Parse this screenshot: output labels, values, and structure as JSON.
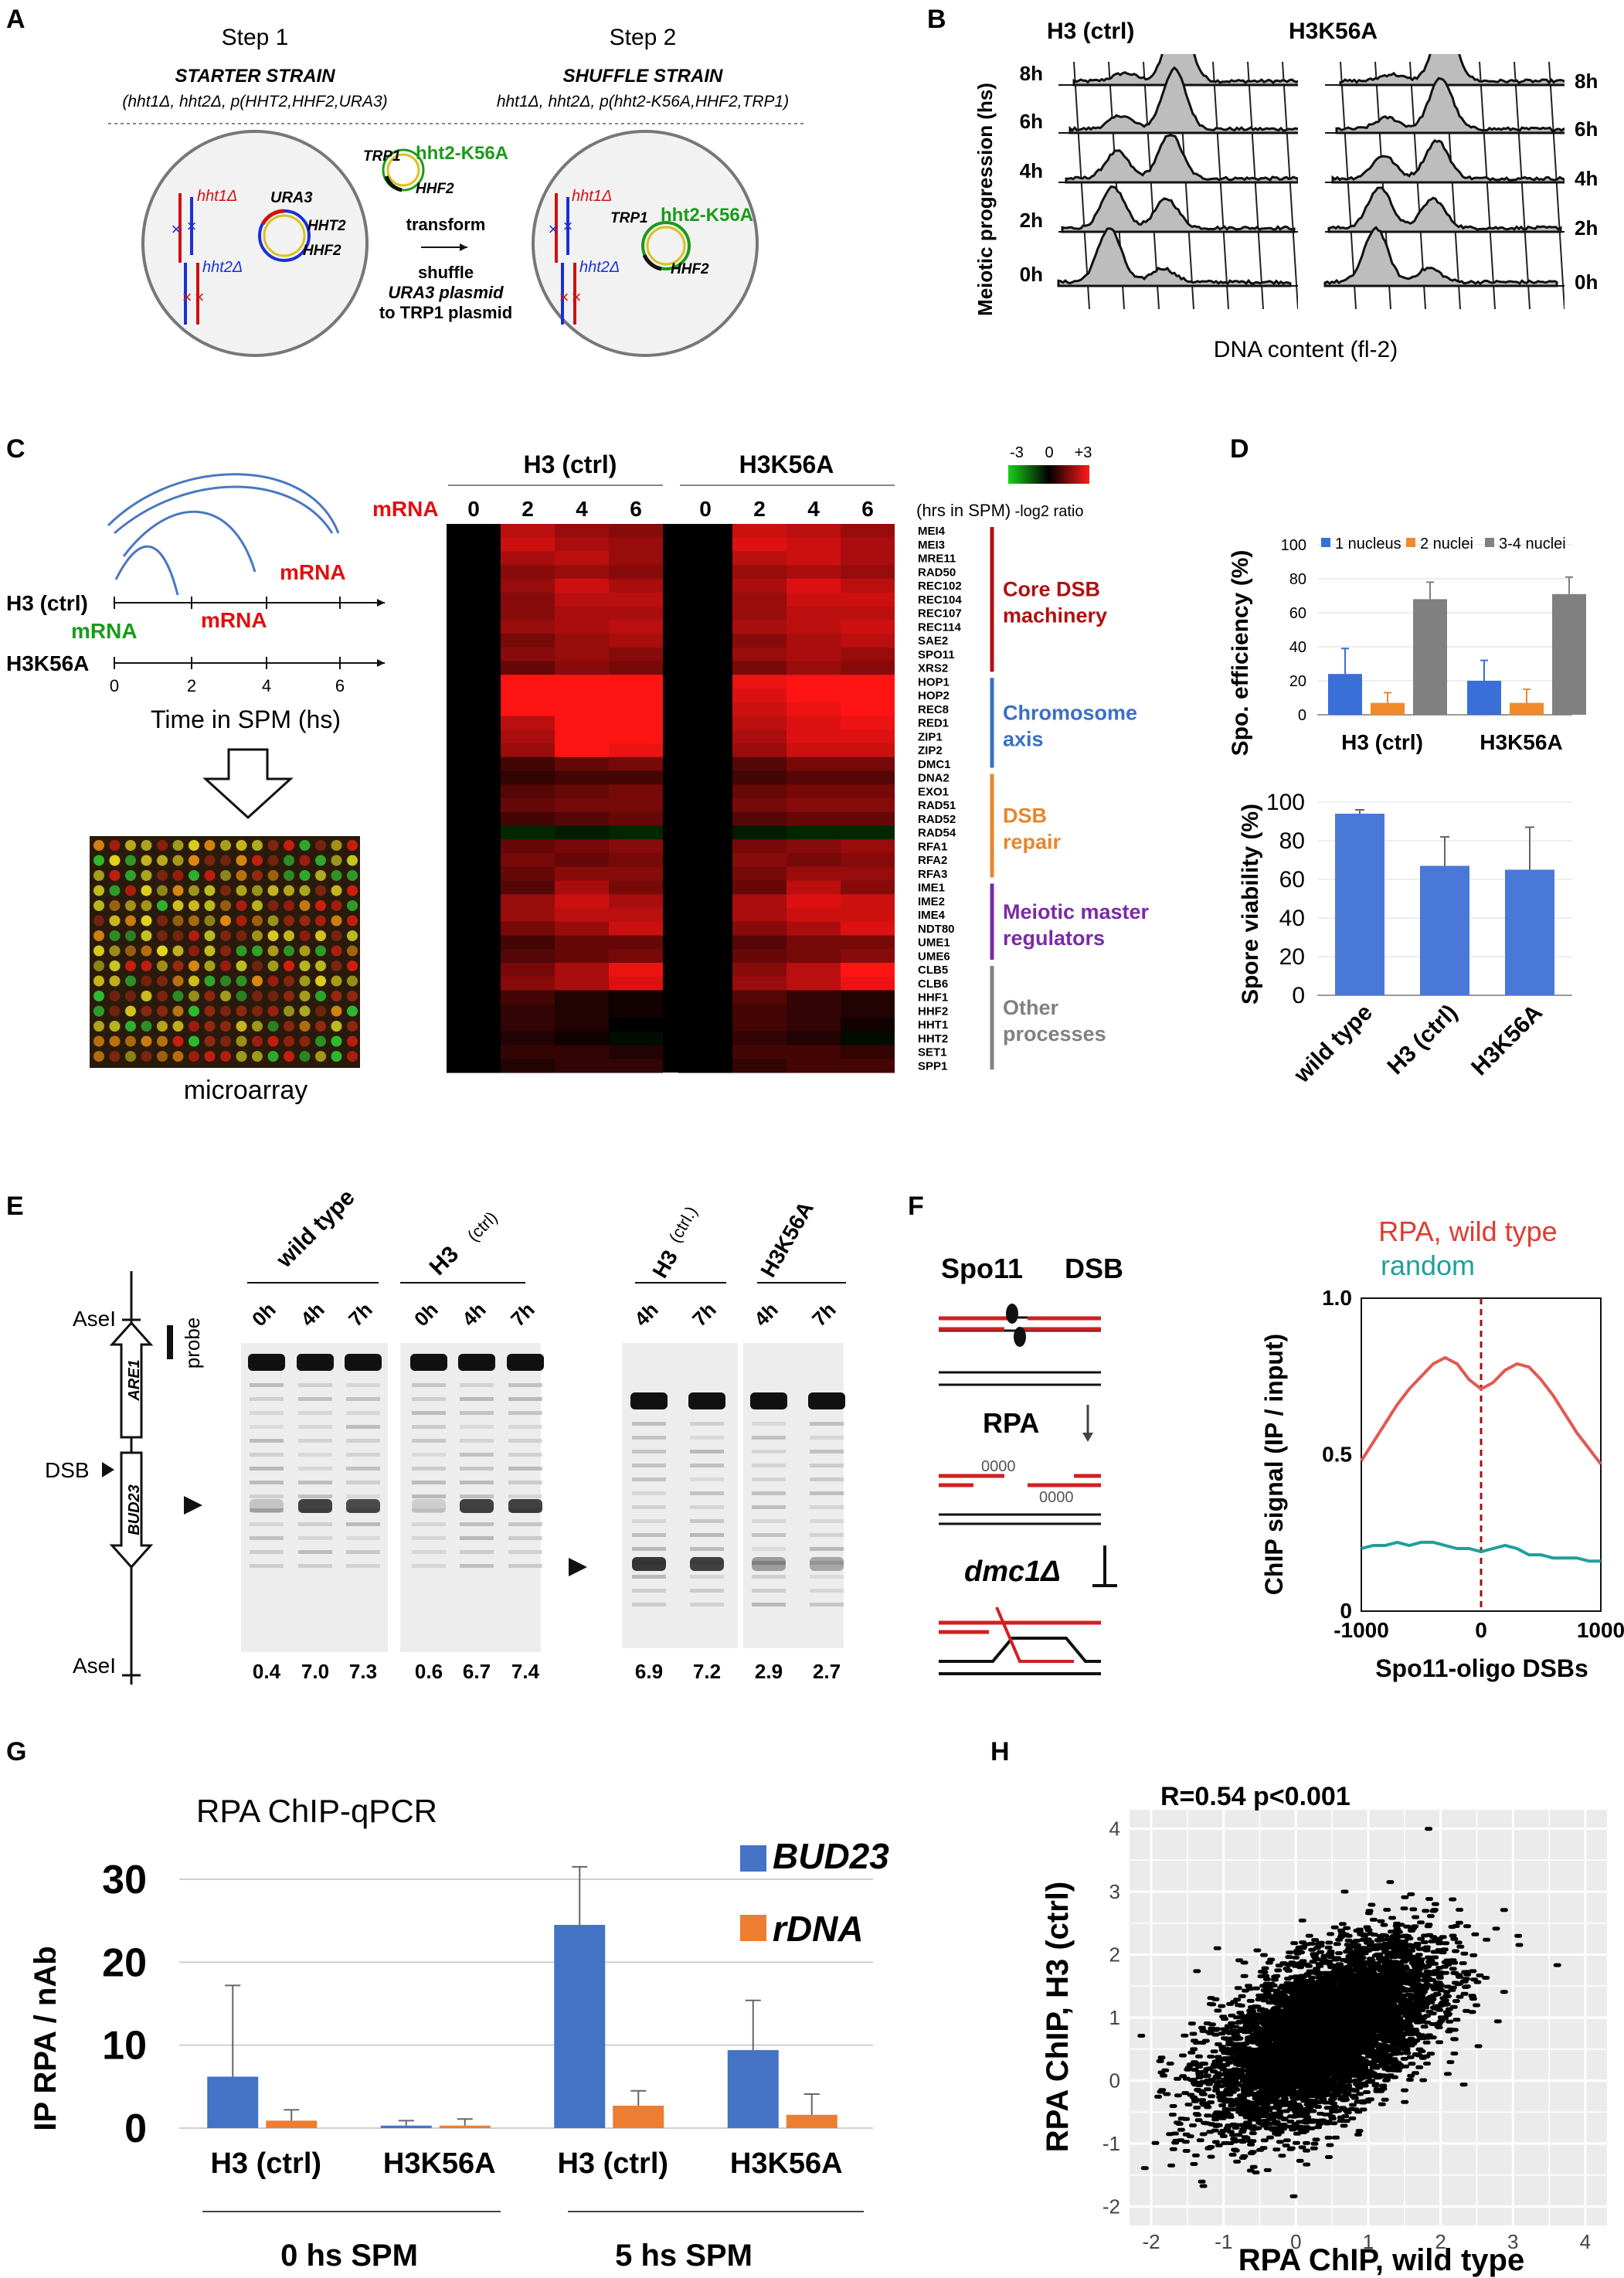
{
  "panels": {
    "A": {
      "label": "A",
      "step1": "Step 1",
      "step2": "Step 2",
      "starter_title": "STARTER STRAIN",
      "starter_genotype": "(hht1Δ, hht2Δ, p(HHT2,HHF2,URA3)",
      "shuffle_title": "SHUFFLE STRAIN",
      "shuffle_genotype": "hht1Δ, hht2Δ, p(hht2-K56A,HHF2,TRP1)",
      "hht1": "hht1Δ",
      "hht2": "hht2Δ",
      "ura3": "URA3",
      "HHT2": "HHT2",
      "HHF2": "HHF2",
      "TRP1": "TRP1",
      "k56a": "hht2-K56A",
      "transform": "transform",
      "shuffle": "shuffle",
      "ura3_plasmid": "URA3 plasmid",
      "to_trp1": "to TRP1 plasmid",
      "colors": {
        "red": "#d01010",
        "blue": "#1a2fd6",
        "green": "#1a9a1a",
        "yellow": "#d9c21a"
      }
    },
    "B": {
      "label": "B",
      "title_left": "H3 (ctrl)",
      "title_right": "H3K56A",
      "ylabel": "Meiotic progression (hs)",
      "xlabel": "DNA content (fl-2)",
      "timepoints": [
        "8h",
        "6h",
        "4h",
        "2h",
        "0h"
      ]
    },
    "C": {
      "label": "C",
      "strain1": "H3 (ctrl)",
      "strain2": "H3K56A",
      "mrna": "mRNA",
      "xlabel": "Time in SPM (hs)",
      "ticks": [
        "0",
        "2",
        "4",
        "6"
      ],
      "microarray": "microarray",
      "heat_cols": [
        "0",
        "2",
        "4",
        "6",
        "0",
        "2",
        "4",
        "6"
      ],
      "hrs_label": "(hrs in SPM)",
      "scale_min": "-3",
      "scale_mid": "0",
      "scale_max": "+3",
      "scale_label": "-log2 ratio",
      "genes": [
        "MEI4",
        "MEI3",
        "MRE11",
        "RAD50",
        "REC102",
        "REC104",
        "REC107",
        "REC114",
        "SAE2",
        "SPO11",
        "XRS2",
        "HOP1",
        "HOP2",
        "REC8",
        "RED1",
        "ZIP1",
        "ZIP2",
        "DMC1",
        "DNA2",
        "EXO1",
        "RAD51",
        "RAD52",
        "RAD54",
        "RFA1",
        "RFA2",
        "RFA3",
        "IME1",
        "IME2",
        "IME4",
        "NDT80",
        "UME1",
        "UME6",
        "CLB5",
        "CLB6",
        "HHF1",
        "HHF2",
        "HHT1",
        "HHT2",
        "SET1",
        "SPP1"
      ],
      "groups": [
        {
          "label": "Core DSB",
          "label2": "machinery",
          "color": "#b01010"
        },
        {
          "label": "Chromosome",
          "label2": "axis",
          "color": "#3a6fc4"
        },
        {
          "label": "DSB",
          "label2": "repair",
          "color": "#e8862a"
        },
        {
          "label": "Meiotic master",
          "label2": "regulators",
          "color": "#7a2aa8"
        },
        {
          "label": "Other",
          "label2": "processes",
          "color": "#808080"
        }
      ],
      "heatmap": {
        "ctrl": [
          [
            0,
            2.2,
            1.8,
            1.6
          ],
          [
            0,
            2.4,
            2.0,
            1.8
          ],
          [
            0,
            2.0,
            2.2,
            1.8
          ],
          [
            0,
            1.6,
            1.8,
            1.6
          ],
          [
            0,
            1.8,
            2.4,
            2.0
          ],
          [
            0,
            1.6,
            2.2,
            2.2
          ],
          [
            0,
            1.6,
            2.0,
            2.0
          ],
          [
            0,
            1.8,
            2.0,
            2.2
          ],
          [
            0,
            1.4,
            1.8,
            2.0
          ],
          [
            0,
            1.6,
            1.8,
            1.6
          ],
          [
            0,
            1.2,
            1.6,
            1.4
          ],
          [
            0,
            3.0,
            3.0,
            3.0
          ],
          [
            0,
            3.0,
            3.0,
            3.0
          ],
          [
            0,
            3.0,
            3.0,
            3.0
          ],
          [
            0,
            2.2,
            3.0,
            3.0
          ],
          [
            0,
            2.0,
            3.0,
            3.0
          ],
          [
            0,
            1.8,
            3.0,
            2.8
          ],
          [
            0,
            0.8,
            1.2,
            1.4
          ],
          [
            0,
            0.6,
            0.8,
            0.8
          ],
          [
            0,
            1.0,
            1.2,
            1.4
          ],
          [
            0,
            1.2,
            1.4,
            1.4
          ],
          [
            0,
            0.8,
            1.0,
            1.2
          ],
          [
            0,
            -0.6,
            -0.4,
            -0.6
          ],
          [
            0,
            1.2,
            1.4,
            1.6
          ],
          [
            0,
            1.4,
            1.2,
            1.4
          ],
          [
            0,
            1.2,
            1.6,
            1.6
          ],
          [
            0,
            1.0,
            2.0,
            1.4
          ],
          [
            0,
            1.8,
            2.4,
            2.0
          ],
          [
            0,
            1.8,
            2.2,
            2.2
          ],
          [
            0,
            1.4,
            1.8,
            2.4
          ],
          [
            0,
            0.8,
            1.2,
            1.2
          ],
          [
            0,
            1.0,
            1.2,
            1.4
          ],
          [
            0,
            1.4,
            2.0,
            2.8
          ],
          [
            0,
            1.6,
            2.0,
            2.6
          ],
          [
            0,
            0.8,
            0.4,
            0.2
          ],
          [
            0,
            0.6,
            0.4,
            0.2
          ],
          [
            0,
            0.6,
            0.4,
            0.0
          ],
          [
            0,
            0.4,
            0.2,
            -0.2
          ],
          [
            0,
            0.6,
            0.6,
            0.4
          ],
          [
            0,
            0.4,
            0.6,
            0.6
          ]
        ],
        "k56a": [
          [
            0,
            2.4,
            2.2,
            1.8
          ],
          [
            0,
            2.6,
            2.4,
            2.0
          ],
          [
            0,
            2.2,
            2.4,
            2.0
          ],
          [
            0,
            1.8,
            2.0,
            1.8
          ],
          [
            0,
            2.0,
            2.6,
            2.2
          ],
          [
            0,
            1.8,
            2.4,
            2.4
          ],
          [
            0,
            1.8,
            2.2,
            2.2
          ],
          [
            0,
            2.0,
            2.2,
            2.4
          ],
          [
            0,
            1.6,
            2.0,
            2.2
          ],
          [
            0,
            1.8,
            2.0,
            1.8
          ],
          [
            0,
            1.4,
            1.8,
            1.6
          ],
          [
            0,
            2.8,
            3.0,
            3.0
          ],
          [
            0,
            2.6,
            3.0,
            3.0
          ],
          [
            0,
            2.4,
            2.8,
            3.0
          ],
          [
            0,
            2.2,
            2.6,
            2.8
          ],
          [
            0,
            2.0,
            2.6,
            2.6
          ],
          [
            0,
            1.8,
            2.4,
            2.4
          ],
          [
            0,
            1.0,
            1.4,
            1.4
          ],
          [
            0,
            0.8,
            1.0,
            1.0
          ],
          [
            0,
            1.2,
            1.4,
            1.4
          ],
          [
            0,
            1.4,
            1.6,
            1.6
          ],
          [
            0,
            1.0,
            1.2,
            1.2
          ],
          [
            0,
            -0.4,
            -0.6,
            -0.6
          ],
          [
            0,
            1.4,
            1.6,
            1.8
          ],
          [
            0,
            1.6,
            1.4,
            1.6
          ],
          [
            0,
            1.4,
            1.8,
            1.8
          ],
          [
            0,
            1.2,
            2.2,
            1.6
          ],
          [
            0,
            2.0,
            2.6,
            2.4
          ],
          [
            0,
            2.0,
            2.4,
            2.4
          ],
          [
            0,
            1.6,
            2.0,
            2.6
          ],
          [
            0,
            1.0,
            1.4,
            1.4
          ],
          [
            0,
            1.2,
            1.4,
            1.6
          ],
          [
            0,
            1.6,
            2.2,
            3.0
          ],
          [
            0,
            1.8,
            2.2,
            2.8
          ],
          [
            0,
            1.0,
            0.6,
            0.4
          ],
          [
            0,
            0.8,
            0.6,
            0.4
          ],
          [
            0,
            0.8,
            0.6,
            0.2
          ],
          [
            0,
            0.6,
            0.4,
            -0.2
          ],
          [
            0,
            0.8,
            0.8,
            0.6
          ],
          [
            0,
            0.6,
            0.8,
            0.8
          ]
        ]
      }
    },
    "D": {
      "label": "D",
      "top_ylabel": "Spo. efficiency (%)",
      "legend": [
        "1 nucleus",
        "2 nuclei",
        "3-4 nuclei"
      ],
      "legend_colors": [
        "#3a6fd8",
        "#f08a2a",
        "#808080"
      ],
      "top_categories": [
        "H3 (ctrl)",
        "H3K56A"
      ],
      "top_values": [
        [
          24,
          7,
          68
        ],
        [
          20,
          7,
          71
        ]
      ],
      "top_errors": [
        [
          15,
          6,
          10
        ],
        [
          12,
          8,
          10
        ]
      ],
      "top_yticks": [
        "0",
        "20",
        "40",
        "60",
        "80",
        "100"
      ],
      "bottom_ylabel": "Spore viability (%)",
      "bottom_categories": [
        "wild type",
        "H3 (ctrl)",
        "H3K56A"
      ],
      "bottom_values": [
        94,
        67,
        65
      ],
      "bottom_errors": [
        2,
        15,
        22
      ],
      "bottom_yticks": [
        "0",
        "20",
        "40",
        "60",
        "80",
        "100"
      ]
    },
    "E": {
      "label": "E",
      "aseI": "AseI",
      "are1": "ARE1",
      "bud23": "BUD23",
      "probe": "probe",
      "dsb": "DSB",
      "groups": [
        "wild type",
        "H3",
        "(ctrl)",
        "H3",
        "(ctrl.)",
        "H3K56A"
      ],
      "times": [
        "0h",
        "4h",
        "7h",
        "0h",
        "4h",
        "7h",
        "4h",
        "7h",
        "4h",
        "7h"
      ],
      "quant": [
        "0.4",
        "7.0",
        "7.3",
        "0.6",
        "6.7",
        "7.4",
        "6.9",
        "7.2",
        "2.9",
        "2.7"
      ]
    },
    "F": {
      "label": "F",
      "spo11": "Spo11",
      "dsb": "DSB",
      "rpa": "RPA",
      "oooo": "0000",
      "dmc1": "dmc1Δ",
      "legend1": "RPA, wild type",
      "legend2": "random",
      "ylabel": "ChIP signal (IP / input)",
      "xlabel": "Spo11-oligo DSBs",
      "xticks": [
        "-1000",
        "0",
        "1000"
      ],
      "yticks": [
        "0",
        "0.5",
        "1.0"
      ],
      "chart_data": {
        "type": "line",
        "xlim": [
          -1000,
          1000
        ],
        "ylim": [
          0,
          1.0
        ],
        "series": [
          {
            "name": "RPA, wild type",
            "color": "#e05a50",
            "x": [
              -1000,
              -900,
              -800,
              -700,
              -600,
              -500,
              -400,
              -300,
              -200,
              -100,
              0,
              100,
              200,
              300,
              400,
              500,
              600,
              700,
              800,
              900,
              1000
            ],
            "y": [
              0.48,
              0.54,
              0.6,
              0.66,
              0.71,
              0.75,
              0.79,
              0.81,
              0.79,
              0.74,
              0.71,
              0.73,
              0.77,
              0.79,
              0.78,
              0.74,
              0.69,
              0.63,
              0.57,
              0.52,
              0.47
            ]
          },
          {
            "name": "random",
            "color": "#1fa098",
            "x": [
              -1000,
              -900,
              -800,
              -700,
              -600,
              -500,
              -400,
              -300,
              -200,
              -100,
              0,
              100,
              200,
              300,
              400,
              500,
              600,
              700,
              800,
              900,
              1000
            ],
            "y": [
              0.2,
              0.21,
              0.21,
              0.22,
              0.21,
              0.22,
              0.22,
              0.21,
              0.2,
              0.2,
              0.19,
              0.2,
              0.21,
              0.2,
              0.18,
              0.18,
              0.17,
              0.17,
              0.17,
              0.16,
              0.16
            ]
          }
        ]
      }
    },
    "G": {
      "label": "G",
      "title": "RPA ChIP-qPCR",
      "ylabel": "IP RPA / nAb",
      "legend": [
        "BUD23",
        "rDNA"
      ],
      "group_labels": [
        "0 hs SPM",
        "5 hs SPM"
      ],
      "yticks": [
        "0",
        "10",
        "20",
        "30"
      ],
      "chart_data": {
        "type": "bar",
        "categories": [
          "H3 (ctrl)",
          "H3K56A",
          "H3 (ctrl)",
          "H3K56A"
        ],
        "ylim": [
          0,
          30
        ],
        "series": [
          {
            "name": "BUD23",
            "color": "#4472c4",
            "values": [
              6.2,
              0.3,
              24.5,
              9.4
            ],
            "errors": [
              11,
              0.6,
              7,
              6
            ]
          },
          {
            "name": "rDNA",
            "color": "#ed7d31",
            "values": [
              0.9,
              0.3,
              2.7,
              1.6
            ],
            "errors": [
              1.3,
              0.8,
              1.8,
              2.5
            ]
          }
        ]
      }
    },
    "H": {
      "label": "H",
      "annotation": "R=0.54   p<0.001",
      "xlabel": "RPA ChIP, wild type",
      "ylabel": "RPA ChIP, H3 (ctrl)",
      "xticks": [
        "-2",
        "-1",
        "0",
        "1",
        "2",
        "3",
        "4"
      ],
      "yticks": [
        "-2",
        "-1",
        "0",
        "1",
        "2",
        "3",
        "4"
      ],
      "chart_data": {
        "type": "scatter",
        "xlim": [
          -2.3,
          4.3
        ],
        "ylim": [
          -2.3,
          4.3
        ],
        "n_points": 6000,
        "x_mean": 0.4,
        "x_sd": 0.75,
        "y_mean": 0.75,
        "y_sd": 0.7,
        "r": 0.54
      }
    }
  }
}
